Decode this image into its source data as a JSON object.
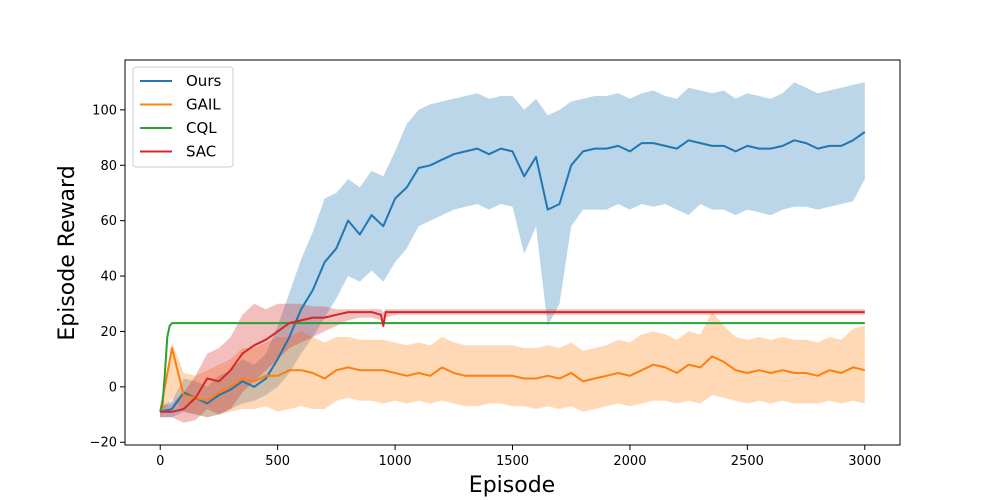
{
  "chart_data": {
    "type": "line",
    "xlabel": "Episode",
    "ylabel": "Episode Reward",
    "xlim": [
      -150,
      3150
    ],
    "ylim": [
      -21,
      118
    ],
    "x_ticks": [
      0,
      500,
      1000,
      1500,
      2000,
      2500,
      3000
    ],
    "y_ticks": [
      -20,
      0,
      20,
      40,
      60,
      80,
      100
    ],
    "legend_position": "top-left",
    "grid": false,
    "series": [
      {
        "name": "Ours",
        "color": "#1f77b4",
        "x": [
          0,
          50,
          100,
          150,
          200,
          250,
          300,
          350,
          400,
          450,
          500,
          550,
          600,
          650,
          700,
          750,
          800,
          850,
          900,
          950,
          1000,
          1050,
          1100,
          1150,
          1200,
          1250,
          1300,
          1350,
          1400,
          1450,
          1500,
          1550,
          1600,
          1650,
          1700,
          1750,
          1800,
          1850,
          1900,
          1950,
          2000,
          2050,
          2100,
          2150,
          2200,
          2250,
          2300,
          2350,
          2400,
          2450,
          2500,
          2550,
          2600,
          2650,
          2700,
          2750,
          2800,
          2850,
          2900,
          2950,
          3000
        ],
        "values": [
          -9,
          -8,
          -2,
          -4,
          -6,
          -3,
          -1,
          2,
          0,
          3,
          10,
          18,
          28,
          35,
          45,
          50,
          60,
          55,
          62,
          58,
          68,
          72,
          79,
          80,
          82,
          84,
          85,
          86,
          84,
          86,
          85,
          76,
          83,
          64,
          66,
          80,
          85,
          86,
          86,
          87,
          85,
          88,
          88,
          87,
          86,
          89,
          88,
          87,
          87,
          85,
          87,
          86,
          86,
          87,
          89,
          88,
          86,
          87,
          87,
          89,
          92
        ],
        "lower": [
          -11,
          -11,
          -9,
          -10,
          -11,
          -10,
          -8,
          -6,
          -5,
          -3,
          0,
          5,
          12,
          18,
          25,
          32,
          40,
          38,
          42,
          38,
          45,
          50,
          58,
          60,
          62,
          64,
          65,
          66,
          64,
          66,
          65,
          48,
          58,
          22,
          30,
          58,
          64,
          64,
          64,
          66,
          64,
          66,
          65,
          66,
          64,
          62,
          66,
          64,
          64,
          62,
          64,
          63,
          62,
          64,
          65,
          65,
          64,
          65,
          66,
          67,
          75
        ],
        "upper": [
          -7,
          -5,
          3,
          2,
          0,
          4,
          6,
          10,
          8,
          12,
          22,
          34,
          46,
          56,
          68,
          70,
          75,
          72,
          78,
          76,
          85,
          95,
          100,
          102,
          103,
          104,
          105,
          106,
          104,
          105,
          105,
          100,
          104,
          98,
          100,
          103,
          104,
          105,
          105,
          106,
          104,
          106,
          107,
          105,
          104,
          108,
          107,
          106,
          107,
          104,
          106,
          105,
          104,
          106,
          110,
          108,
          106,
          107,
          108,
          109,
          110
        ]
      },
      {
        "name": "GAIL",
        "color": "#ff7f0e",
        "x": [
          0,
          50,
          100,
          150,
          200,
          250,
          300,
          350,
          400,
          450,
          500,
          550,
          600,
          650,
          700,
          750,
          800,
          850,
          900,
          950,
          1000,
          1050,
          1100,
          1150,
          1200,
          1250,
          1300,
          1350,
          1400,
          1450,
          1500,
          1550,
          1600,
          1650,
          1700,
          1750,
          1800,
          1850,
          1900,
          1950,
          2000,
          2050,
          2100,
          2150,
          2200,
          2250,
          2300,
          2350,
          2400,
          2450,
          2500,
          2550,
          2600,
          2650,
          2700,
          2750,
          2800,
          2850,
          2900,
          2950,
          3000
        ],
        "values": [
          -9,
          14,
          -3,
          -4,
          -5,
          -2,
          0,
          3,
          2,
          4,
          4,
          6,
          6,
          5,
          3,
          6,
          7,
          6,
          6,
          6,
          5,
          4,
          5,
          4,
          7,
          5,
          4,
          4,
          4,
          4,
          4,
          3,
          3,
          4,
          3,
          5,
          2,
          3,
          4,
          5,
          4,
          6,
          8,
          7,
          5,
          8,
          7,
          11,
          9,
          6,
          5,
          6,
          5,
          6,
          5,
          5,
          4,
          6,
          5,
          7,
          6
        ],
        "lower": [
          -11,
          -4,
          -9,
          -10,
          -11,
          -10,
          -9,
          -8,
          -8,
          -7,
          -9,
          -8,
          -7,
          -8,
          -8,
          -5,
          -4,
          -5,
          -5,
          -6,
          -5,
          -6,
          -5,
          -6,
          -5,
          -6,
          -7,
          -7,
          -6,
          -6,
          -7,
          -7,
          -8,
          -7,
          -8,
          -7,
          -9,
          -8,
          -7,
          -6,
          -7,
          -6,
          -5,
          -5,
          -6,
          -5,
          -6,
          -3,
          -4,
          -5,
          -6,
          -5,
          -6,
          -5,
          -6,
          -6,
          -6,
          -5,
          -6,
          -5,
          -6
        ],
        "upper": [
          -7,
          16,
          5,
          4,
          6,
          8,
          10,
          14,
          14,
          16,
          18,
          18,
          20,
          18,
          16,
          18,
          18,
          17,
          17,
          17,
          16,
          15,
          16,
          15,
          18,
          16,
          15,
          15,
          15,
          15,
          15,
          14,
          14,
          15,
          14,
          16,
          13,
          14,
          15,
          17,
          16,
          19,
          20,
          19,
          17,
          20,
          19,
          27,
          22,
          18,
          17,
          18,
          17,
          18,
          17,
          17,
          16,
          18,
          17,
          21,
          22
        ]
      },
      {
        "name": "CQL",
        "color": "#2ca02c",
        "x": [
          0,
          10,
          20,
          30,
          40,
          50,
          3000
        ],
        "values": [
          -9,
          -6,
          5,
          18,
          22,
          23,
          23
        ],
        "lower": null,
        "upper": null
      },
      {
        "name": "SAC",
        "color": "#d62728",
        "x": [
          0,
          50,
          100,
          150,
          200,
          250,
          300,
          350,
          400,
          450,
          500,
          550,
          600,
          650,
          700,
          750,
          800,
          850,
          900,
          940,
          950,
          960,
          1000,
          1100,
          1200,
          1300,
          1400,
          1500,
          1600,
          1700,
          1800,
          1900,
          2000,
          2100,
          2200,
          2300,
          2400,
          2500,
          2600,
          2700,
          2800,
          2850,
          2900,
          3000
        ],
        "values": [
          -9,
          -9,
          -8,
          -4,
          3,
          2,
          6,
          12,
          15,
          17,
          20,
          23,
          24,
          25,
          25,
          26,
          27,
          27,
          27,
          26,
          22,
          27,
          27,
          27,
          27,
          27,
          27,
          27,
          27,
          27,
          27,
          27,
          27,
          27,
          27,
          27,
          27,
          27,
          27,
          27,
          27,
          27,
          27,
          27
        ],
        "lower": [
          -11,
          -11,
          -13,
          -12,
          -8,
          -10,
          -8,
          -2,
          2,
          6,
          10,
          14,
          16,
          18,
          20,
          22,
          24,
          25,
          25,
          24,
          21,
          25,
          26,
          26,
          26,
          26,
          26,
          26,
          26,
          26,
          26,
          26,
          26,
          26,
          26,
          26,
          26,
          26,
          26,
          26,
          26,
          26,
          26,
          26
        ],
        "upper": [
          -7,
          -6,
          -2,
          4,
          12,
          14,
          18,
          26,
          30,
          28,
          30,
          30,
          30,
          29,
          29,
          28,
          28,
          28,
          28,
          28,
          27,
          28,
          28,
          28,
          28,
          28,
          28,
          28,
          28,
          28,
          28,
          28,
          28,
          28,
          28,
          28,
          28,
          28,
          28,
          28,
          28,
          28,
          28,
          28
        ]
      }
    ]
  }
}
